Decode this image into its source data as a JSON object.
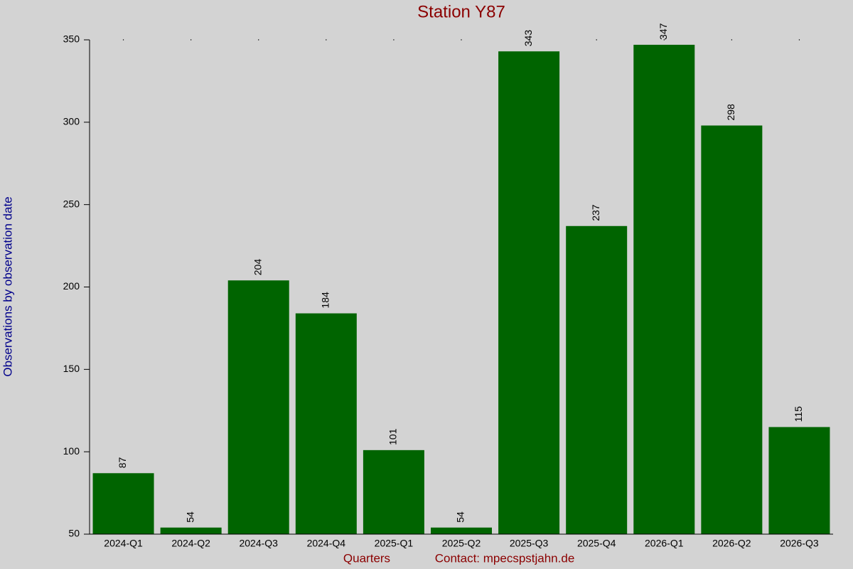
{
  "chart_data": {
    "type": "bar",
    "title": "Station Y87",
    "y_label": "Observations by observation date",
    "x_label": "Quarters",
    "annotation": "Contact: mpecspstjahn.de",
    "categories": [
      "2024-Q1",
      "2024-Q2",
      "2024-Q3",
      "2024-Q4",
      "2025-Q1",
      "2025-Q2",
      "2025-Q3",
      "2025-Q4",
      "2026-Q1",
      "2026-Q2",
      "2026-Q3"
    ],
    "values": [
      87,
      54,
      204,
      184,
      101,
      54,
      343,
      237,
      347,
      298,
      115
    ],
    "color": "#006400",
    "ylim": [
      50,
      350
    ],
    "yticks": [
      50,
      100,
      150,
      200,
      250,
      300,
      350
    ],
    "grid": false
  }
}
